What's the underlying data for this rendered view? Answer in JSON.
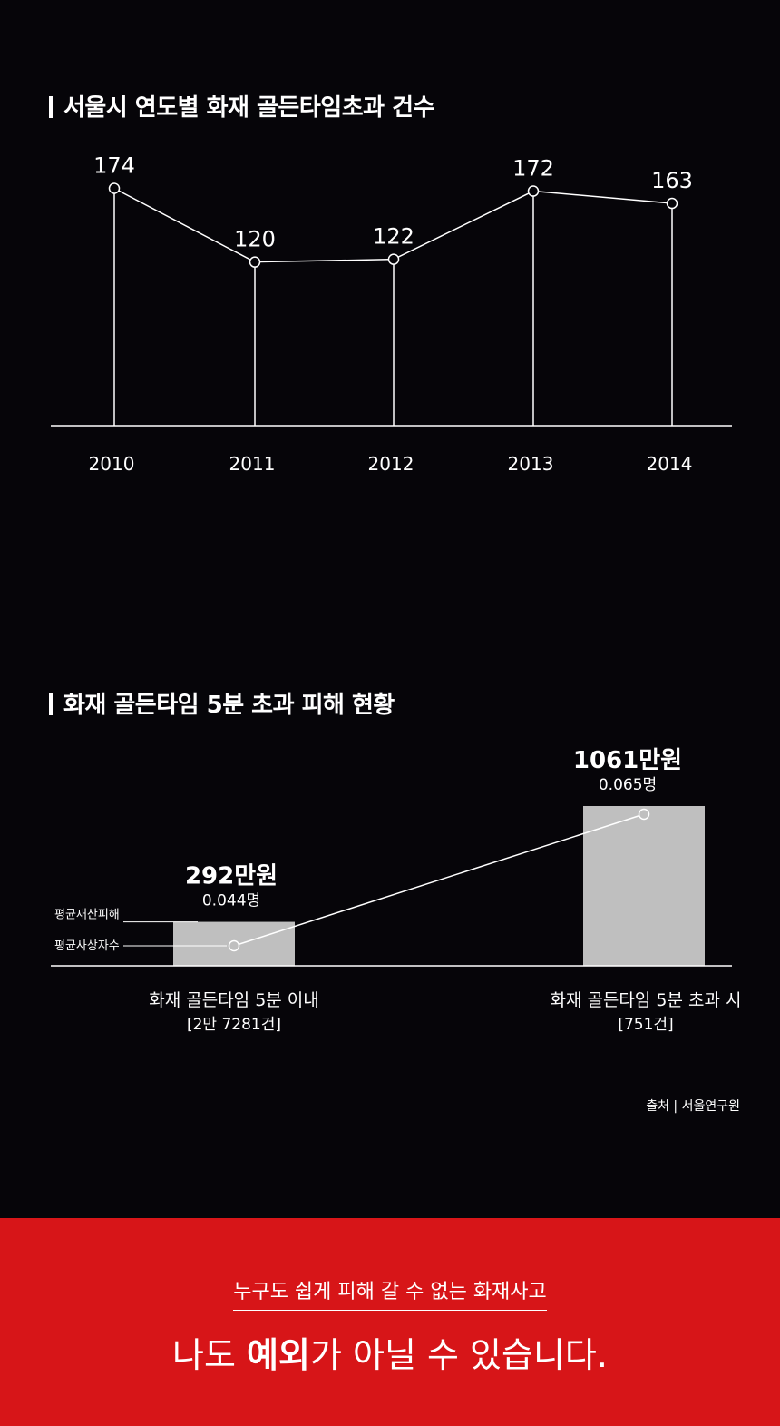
{
  "chart_data": [
    {
      "type": "line",
      "title": "서울시 연도별 화재 골든타임초과 건수",
      "categories": [
        "2010",
        "2011",
        "2012",
        "2013",
        "2014"
      ],
      "values": [
        174,
        120,
        122,
        172,
        163
      ],
      "ylim": [
        0,
        200
      ],
      "grid": false,
      "line_color": "#ffffff"
    },
    {
      "type": "bar",
      "title": "화재 골든타임 5분 초과 피해 현황",
      "categories": [
        "화재 골든타임 5분 이내",
        "화재 골든타임 5분 초과 시"
      ],
      "category_counts": [
        "[2만 7281건]",
        "[751건]"
      ],
      "series": [
        {
          "name": "평균재산피해",
          "values": [
            292,
            1061
          ],
          "labels": [
            "292만원",
            "1061만원"
          ],
          "mark": "bar",
          "color": "#bfbfbf"
        },
        {
          "name": "평균사상자수",
          "values": [
            0.044,
            0.065
          ],
          "labels": [
            "0.044명",
            "0.065명"
          ],
          "mark": "line",
          "color": "#ffffff"
        }
      ]
    }
  ],
  "source": "출처 | 서울연구원",
  "banner": {
    "subtitle": "누구도 쉽게 피해 갈 수 없는 화재사고",
    "headline_pre": "나도 ",
    "headline_bold": "예외",
    "headline_post": "가 아닐 수 있습니다.",
    "background_color": "#d71518"
  }
}
